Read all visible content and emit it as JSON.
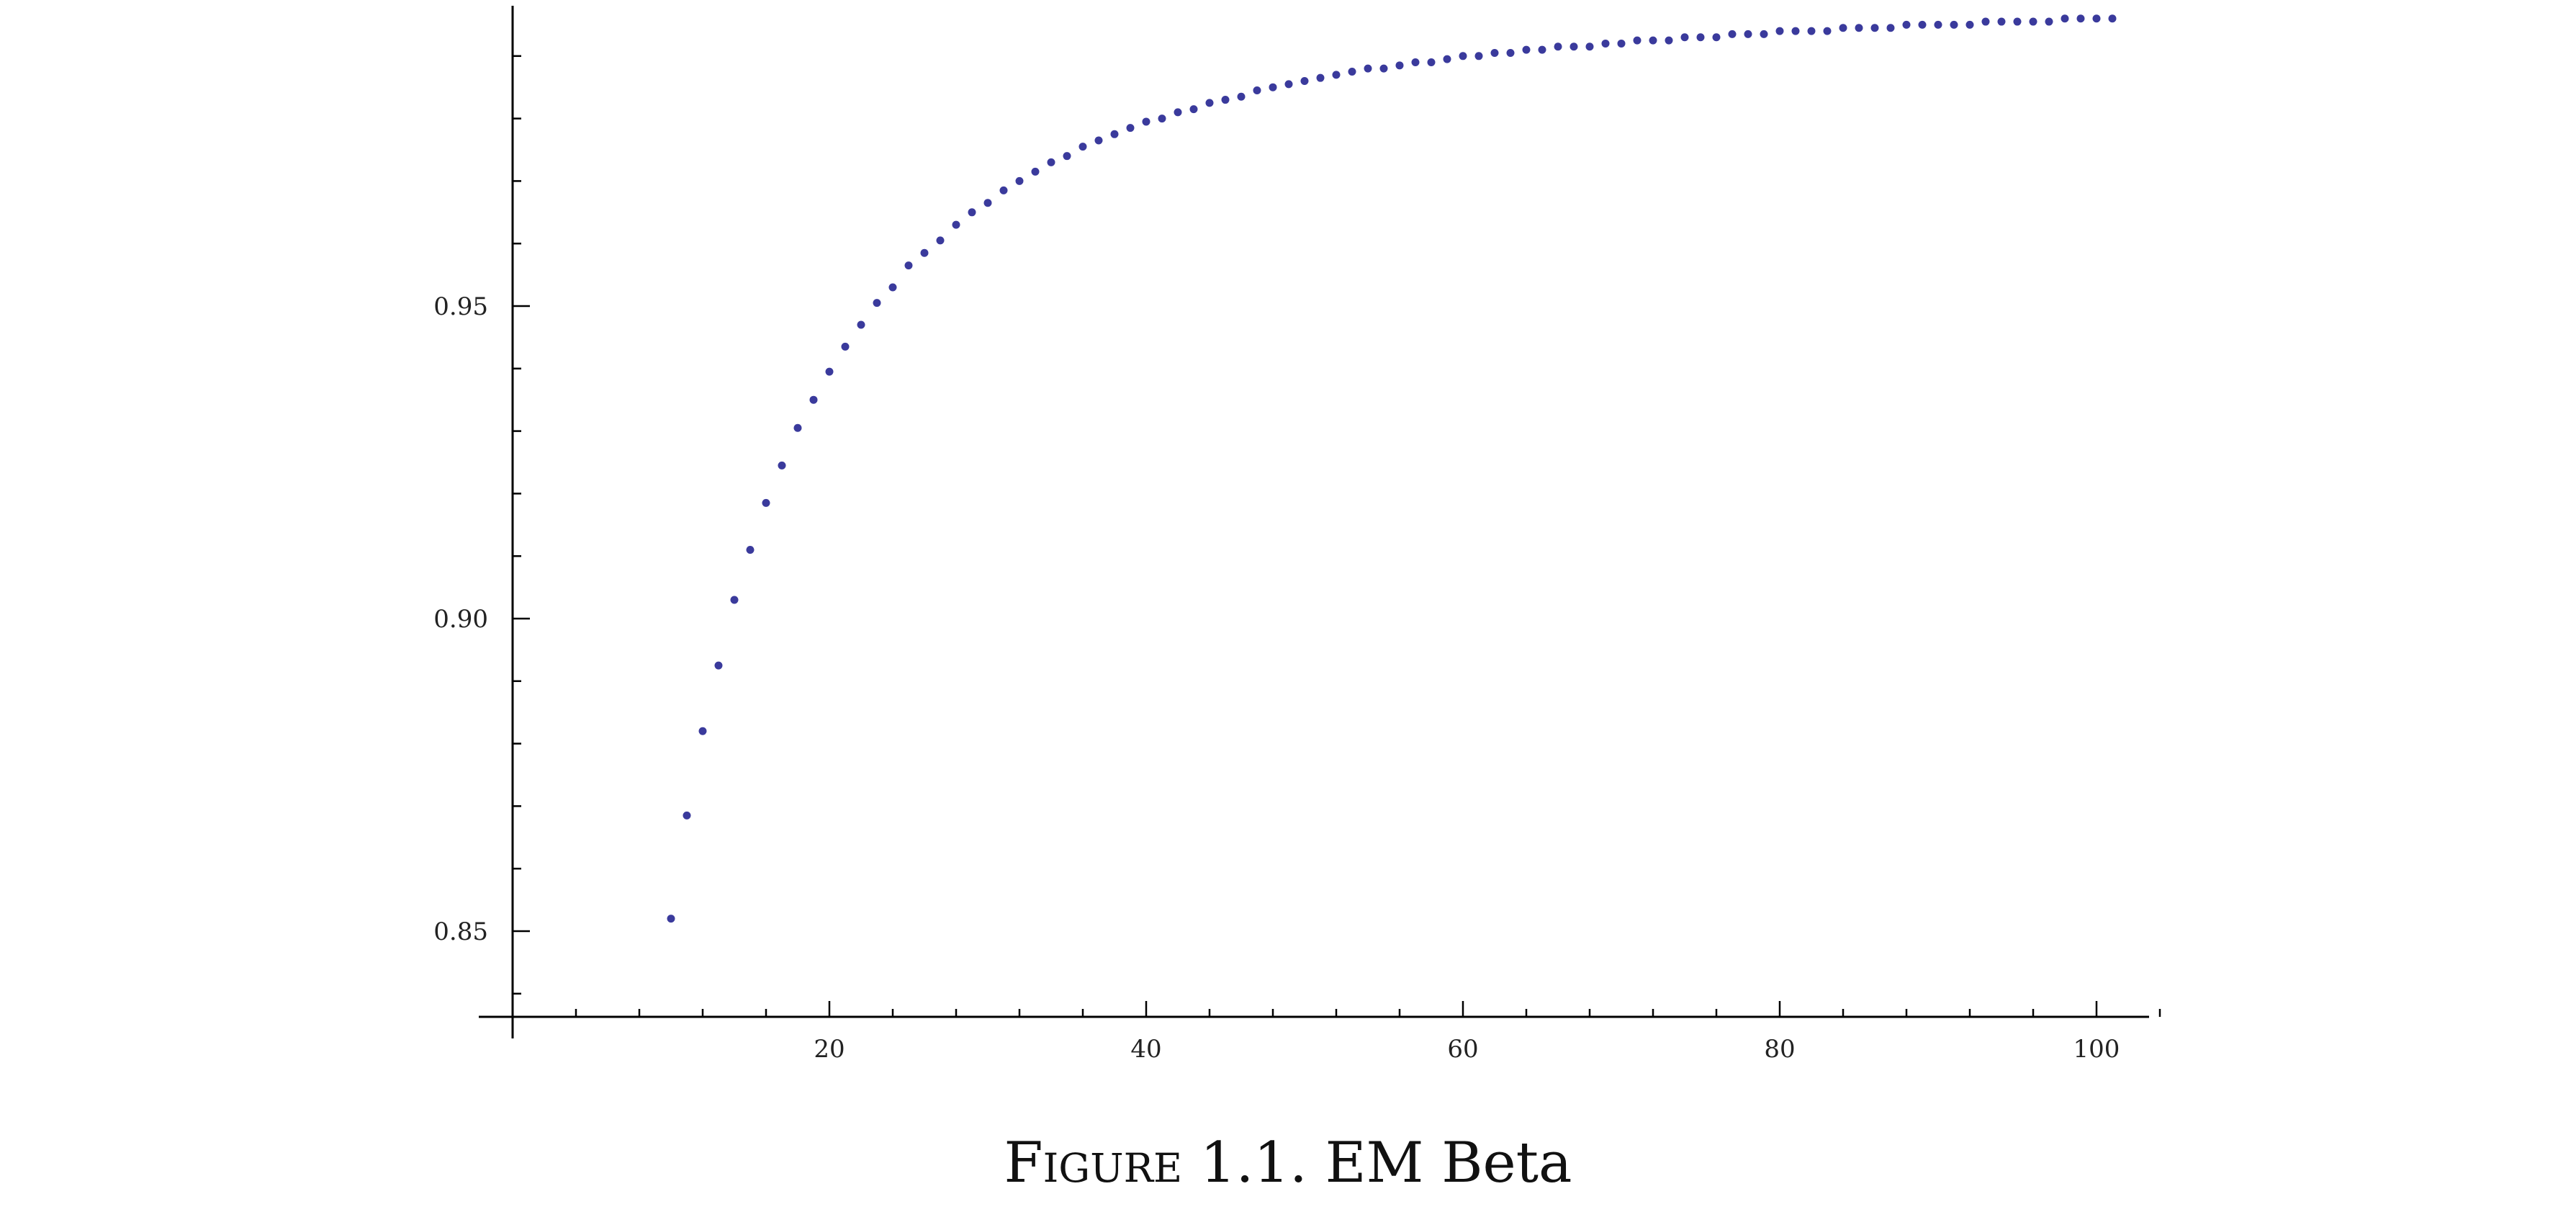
{
  "figure": {
    "label_prefix": "Figure",
    "label_number": "1.1.",
    "title": "EM Beta"
  },
  "chart_data": {
    "type": "scatter",
    "title": "",
    "xlabel": "",
    "ylabel": "",
    "xlim": [
      0,
      105
    ],
    "ylim": [
      0.836,
      0.998
    ],
    "grid": false,
    "legend": "none",
    "marker_color": "#3a3a9c",
    "x_ticks": [
      20,
      40,
      60,
      80,
      100
    ],
    "x_tick_labels": [
      "20",
      "40",
      "60",
      "80",
      "100"
    ],
    "y_ticks": [
      0.85,
      0.9,
      0.95
    ],
    "y_tick_labels": [
      "0.85",
      "0.90",
      "0.95"
    ],
    "series": [
      {
        "x": [
          10,
          11,
          12,
          13,
          14,
          15,
          16,
          17,
          18,
          19,
          20,
          21,
          22,
          23,
          24,
          25,
          26,
          27,
          28,
          29,
          30,
          31,
          32,
          33,
          34,
          35,
          36,
          37,
          38,
          39,
          40,
          41,
          42,
          43,
          44,
          45,
          46,
          47,
          48,
          49,
          50,
          51,
          52,
          53,
          54,
          55,
          56,
          57,
          58,
          59,
          60,
          61,
          62,
          63,
          64,
          65,
          66,
          67,
          68,
          69,
          70,
          71,
          72,
          73,
          74,
          75,
          76,
          77,
          78,
          79,
          80,
          81,
          82,
          83,
          84,
          85,
          86,
          87,
          88,
          89,
          90,
          91,
          92,
          93,
          94,
          95,
          96,
          97,
          98,
          99,
          100,
          101
        ],
        "y": [
          0.852,
          0.8685,
          0.882,
          0.8925,
          0.903,
          0.911,
          0.9185,
          0.9245,
          0.9305,
          0.935,
          0.9395,
          0.9435,
          0.947,
          0.9505,
          0.953,
          0.9565,
          0.9585,
          0.9605,
          0.963,
          0.965,
          0.9665,
          0.9685,
          0.97,
          0.9715,
          0.973,
          0.974,
          0.9755,
          0.9765,
          0.9775,
          0.9785,
          0.9795,
          0.98,
          0.981,
          0.9815,
          0.9825,
          0.983,
          0.9835,
          0.9845,
          0.985,
          0.9855,
          0.986,
          0.9865,
          0.987,
          0.9875,
          0.988,
          0.988,
          0.9885,
          0.989,
          0.989,
          0.9895,
          0.99,
          0.99,
          0.9905,
          0.9905,
          0.991,
          0.991,
          0.9915,
          0.9915,
          0.9915,
          0.992,
          0.992,
          0.9925,
          0.9925,
          0.9925,
          0.993,
          0.993,
          0.993,
          0.9935,
          0.9935,
          0.9935,
          0.994,
          0.994,
          0.994,
          0.994,
          0.9945,
          0.9945,
          0.9945,
          0.9945,
          0.995,
          0.995,
          0.995,
          0.995,
          0.995,
          0.9955,
          0.9955,
          0.9955,
          0.9955,
          0.9955,
          0.996,
          0.996,
          0.996,
          0.996
        ]
      }
    ]
  }
}
